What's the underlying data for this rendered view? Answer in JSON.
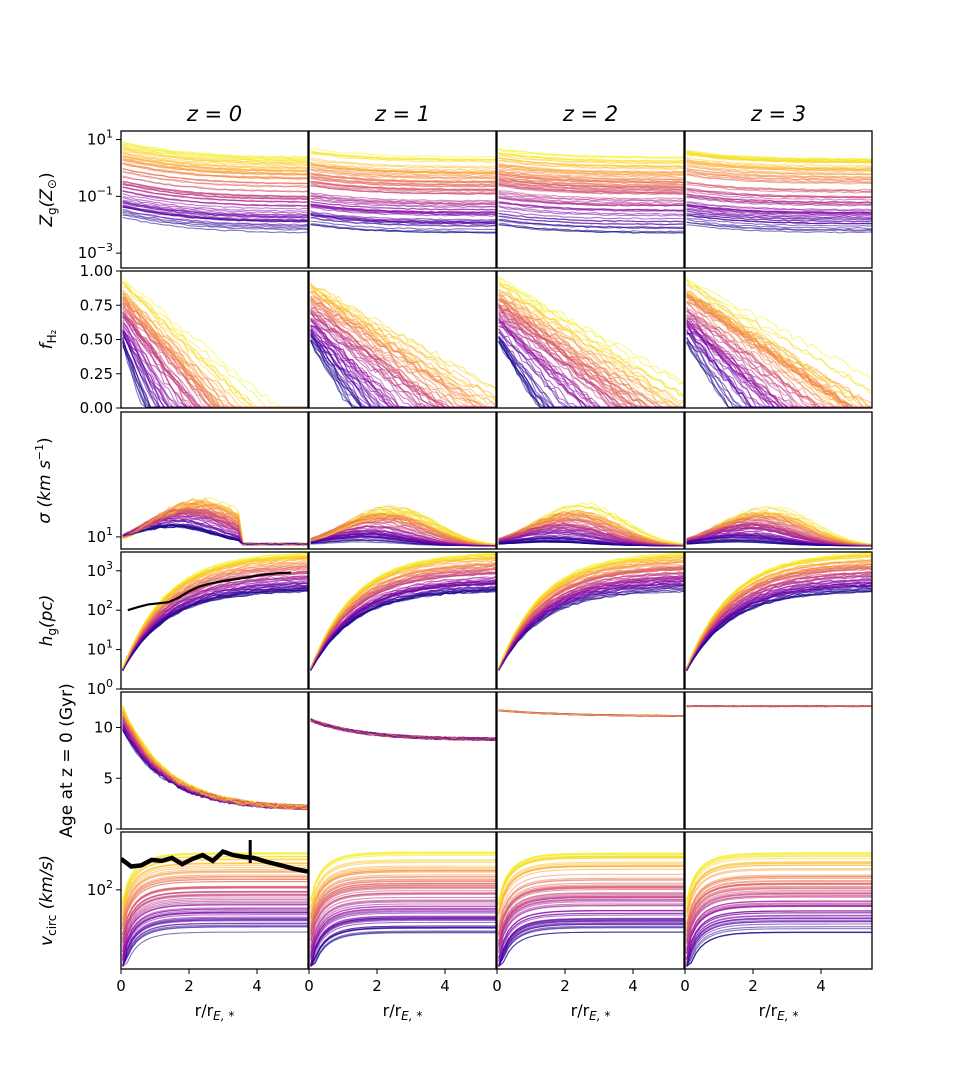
{
  "chart_data": {
    "type": "line",
    "layout": "grid 6 rows x 4 columns, shared x per column, shared y per row",
    "columns": [
      {
        "title": "z = 0"
      },
      {
        "title": "z = 1"
      },
      {
        "title": "z = 2"
      },
      {
        "title": "z = 3"
      }
    ],
    "x_axis": {
      "label": "r/r",
      "label_sub": "E, *",
      "range": [
        0,
        5.5
      ],
      "ticks": [
        0,
        2,
        4
      ]
    },
    "rows": [
      {
        "label": "Z",
        "label_sub": "g",
        "label_rest": "(Z",
        "label_sun": "⊙",
        "label_end": ")",
        "scale": "log",
        "range": [
          0.0003,
          20
        ],
        "ticks": [
          {
            "base": "10",
            "exp": "1",
            "v": 10
          },
          {
            "base": "10",
            "exp": "−1",
            "v": 0.1
          },
          {
            "base": "10",
            "exp": "−3",
            "v": 0.001
          }
        ]
      },
      {
        "label": "f",
        "label_sub": "H₂",
        "scale": "linear",
        "range": [
          0,
          1
        ],
        "ticks": [
          {
            "text": "1.00",
            "v": 1
          },
          {
            "text": "0.75",
            "v": 0.75
          },
          {
            "text": "0.50",
            "v": 0.5
          },
          {
            "text": "0.25",
            "v": 0.25
          },
          {
            "text": "0.00",
            "v": 0
          }
        ]
      },
      {
        "label": "σ (km s",
        "label_sup": "−1",
        "label_end": ")",
        "scale": "log",
        "range": [
          8,
          100
        ],
        "ticks": [
          {
            "base": "10",
            "exp": "1",
            "v": 10
          }
        ]
      },
      {
        "label": "h",
        "label_sub": "g",
        "label_rest": "(pc)",
        "scale": "log",
        "range": [
          1,
          3000
        ],
        "ticks": [
          {
            "base": "10",
            "exp": "3",
            "v": 1000
          },
          {
            "base": "10",
            "exp": "2",
            "v": 100
          },
          {
            "base": "10",
            "exp": "1",
            "v": 10
          },
          {
            "base": "10",
            "exp": "0",
            "v": 1
          }
        ]
      },
      {
        "label": "Age at z = 0 (Gyr)",
        "scale": "linear",
        "range": [
          0,
          13.5
        ],
        "ticks": [
          {
            "text": "10",
            "v": 10
          },
          {
            "text": "5",
            "v": 5
          },
          {
            "text": "0",
            "v": 0
          }
        ]
      },
      {
        "label": "v",
        "label_sub": "circ",
        "label_rest": " (km/s)",
        "scale": "log",
        "range": [
          15,
          400
        ],
        "ticks": [
          {
            "base": "10",
            "exp": "2",
            "v": 100
          }
        ]
      }
    ],
    "series_description": "~200 galaxy radial profiles per panel, colored on a plasma colormap (dark blue to yellow)",
    "colors": {
      "cmap_low": "#0d0887",
      "cmap_mid": "#cc4778",
      "cmap_high": "#f0f921",
      "observation_line": "#000000"
    },
    "observations": {
      "h_g_z0": {
        "x": [
          0.2,
          0.5,
          0.8,
          1.1,
          1.4,
          1.7,
          2.0,
          2.3,
          2.6,
          3.0,
          3.4,
          3.8,
          4.2,
          4.6,
          5.0
        ],
        "y": [
          100,
          120,
          140,
          150,
          160,
          210,
          300,
          400,
          470,
          550,
          620,
          700,
          800,
          870,
          900
        ]
      },
      "v_circ_z0": {
        "x": [
          0.0,
          0.3,
          0.6,
          0.9,
          1.2,
          1.5,
          1.8,
          2.1,
          2.4,
          2.7,
          3.0,
          3.3,
          3.6,
          3.9,
          4.3,
          4.7,
          5.1,
          5.5
        ],
        "y": [
          210,
          175,
          180,
          205,
          200,
          215,
          185,
          210,
          230,
          200,
          250,
          230,
          220,
          215,
          195,
          180,
          165,
          155
        ]
      }
    }
  }
}
